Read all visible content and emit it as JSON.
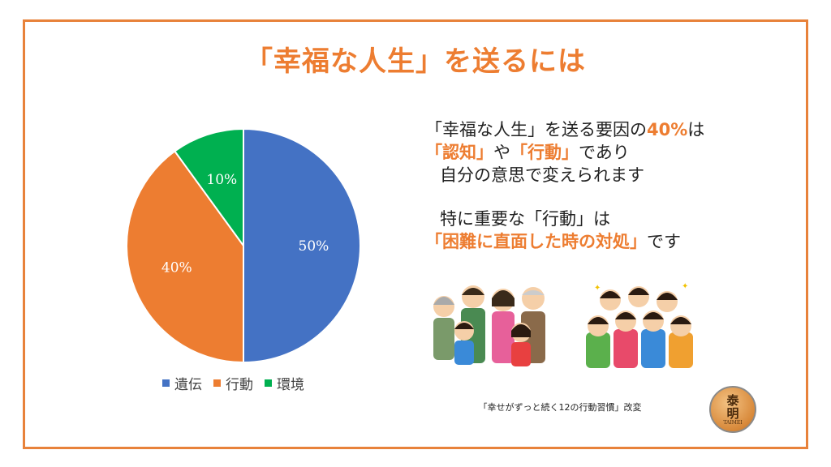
{
  "title": "「幸福な人生」を送るには",
  "chart_data": {
    "type": "pie",
    "title": "",
    "series": [
      {
        "name": "遺伝",
        "value": 50,
        "label": "50%",
        "color": "#4472c4"
      },
      {
        "name": "行動",
        "value": 40,
        "label": "40%",
        "color": "#ed7d31"
      },
      {
        "name": "環境",
        "value": 10,
        "label": "10%",
        "color": "#00b050"
      }
    ],
    "legend_position": "bottom"
  },
  "text": {
    "line1_a": "「幸福な人生」を送る要因の",
    "line1_b": "40%",
    "line1_c": "は",
    "line2_a": "「認知」",
    "line2_b": "や",
    "line2_c": "「行動」",
    "line2_d": "であり",
    "line3": "自分の意思で変えられます",
    "line4": "特に重要な「行動」は",
    "line5_a": "「困難に直面した時の対処」",
    "line5_b": "です"
  },
  "caption": "「幸せがずっと続く12の行動習慣」改変",
  "logo": {
    "char1": "泰",
    "char2": "明",
    "sub": "TAIMEI"
  }
}
